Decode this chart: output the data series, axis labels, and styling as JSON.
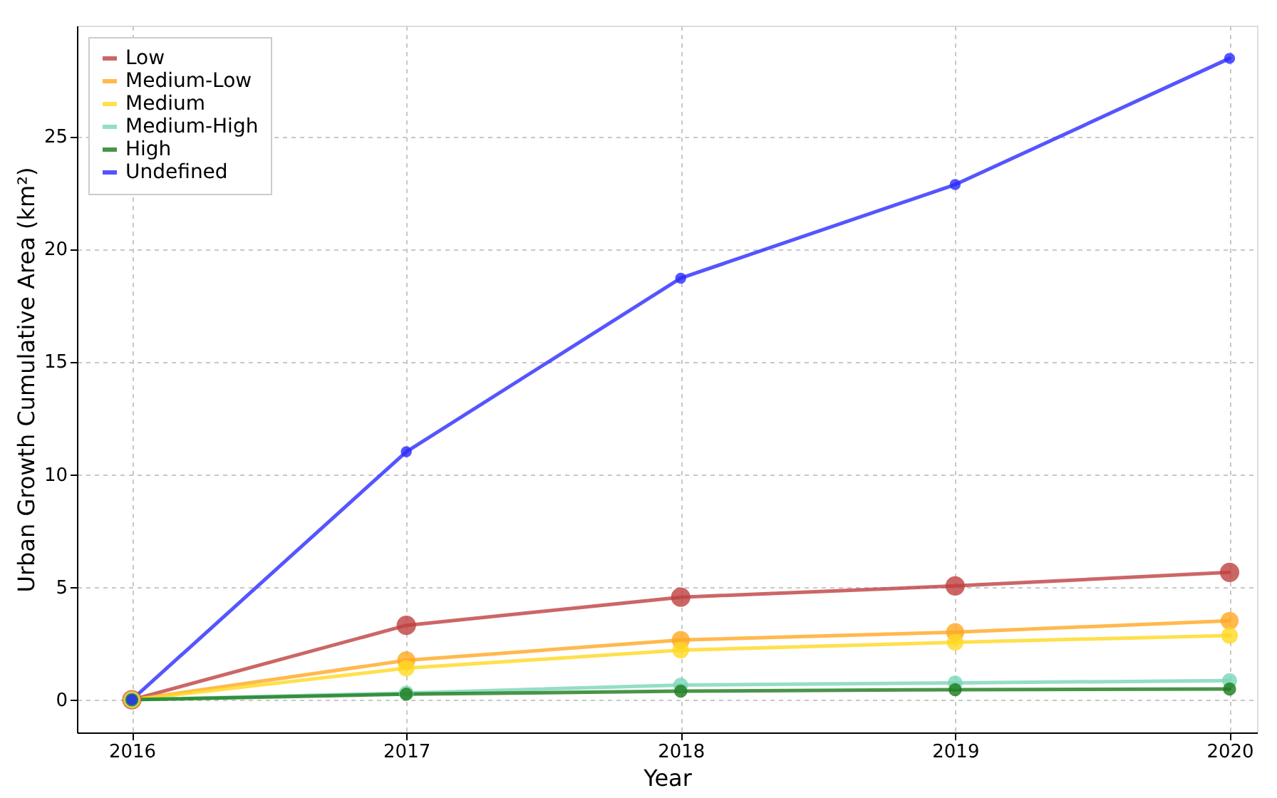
{
  "chart_data": {
    "type": "line",
    "xlabel": "Year",
    "ylabel": "Urban Growth Cumulative Area (km²)",
    "x": [
      2016,
      2017,
      2018,
      2019,
      2020
    ],
    "series": [
      {
        "name": "Low",
        "color": "#bf4040",
        "values": [
          0,
          3.3,
          4.55,
          5.05,
          5.65
        ]
      },
      {
        "name": "Medium-Low",
        "color": "#ffa820",
        "values": [
          0,
          1.75,
          2.65,
          3.0,
          3.5
        ]
      },
      {
        "name": "Medium",
        "color": "#ffd820",
        "values": [
          0,
          1.4,
          2.2,
          2.55,
          2.85
        ]
      },
      {
        "name": "Medium-High",
        "color": "#7ad6b8",
        "values": [
          0,
          0.3,
          0.65,
          0.75,
          0.85
        ]
      },
      {
        "name": "High",
        "color": "#1a7a1a",
        "values": [
          0,
          0.25,
          0.38,
          0.45,
          0.48
        ]
      },
      {
        "name": "Undefined",
        "color": "#2a2aff",
        "values": [
          0,
          11.0,
          18.7,
          22.85,
          28.45
        ]
      }
    ],
    "xlim": [
      2015.8,
      2020.1
    ],
    "xticks": [
      2016,
      2017,
      2018,
      2019,
      2020
    ],
    "ylim": [
      -1.45,
      29.9
    ],
    "yticks": [
      0,
      5,
      10,
      15,
      20,
      25
    ],
    "grid": true,
    "legend": "top left",
    "marker": "circle",
    "line_style": "solid"
  }
}
